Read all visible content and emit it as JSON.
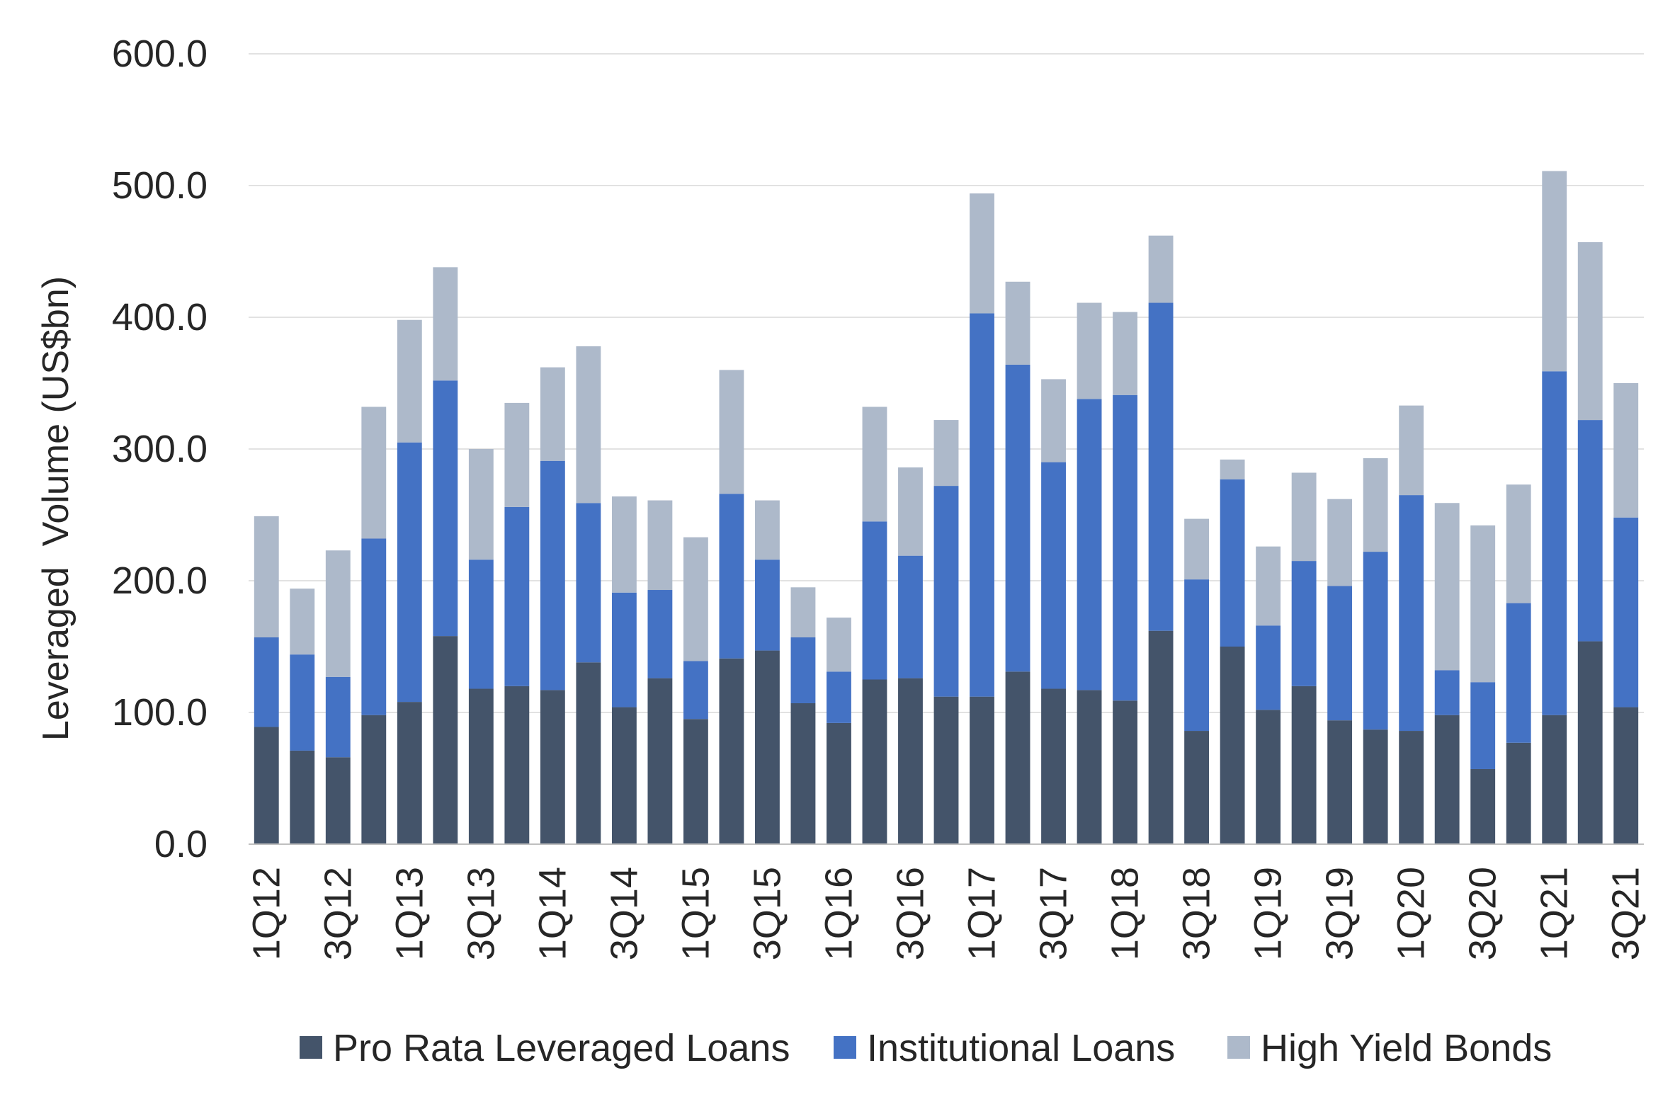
{
  "chart_data": {
    "type": "bar",
    "stacked": true,
    "categories": [
      "1Q12",
      "",
      "3Q12",
      "",
      "1Q13",
      "",
      "3Q13",
      "",
      "1Q14",
      "",
      "3Q14",
      "",
      "1Q15",
      "",
      "3Q15",
      "",
      "1Q16",
      "",
      "3Q16",
      "",
      "1Q17",
      "",
      "3Q17",
      "",
      "1Q18",
      "",
      "3Q18",
      "",
      "1Q19",
      "",
      "3Q19",
      "",
      "1Q20",
      "",
      "3Q20",
      "",
      "1Q21",
      "",
      "3Q21"
    ],
    "series": [
      {
        "name": "Pro Rata Leveraged Loans",
        "color": "#44546A",
        "values": [
          89,
          71,
          66,
          98,
          108,
          158,
          118,
          120,
          117,
          138,
          104,
          126,
          95,
          141,
          147,
          107,
          92,
          125,
          126,
          112,
          112,
          131,
          118,
          117,
          109,
          162,
          86,
          150,
          102,
          120,
          94,
          87,
          86,
          98,
          57,
          77,
          98,
          154,
          104
        ]
      },
      {
        "name": "Institutional Loans",
        "color": "#4472C4",
        "values": [
          68,
          73,
          61,
          134,
          197,
          194,
          98,
          136,
          174,
          121,
          87,
          67,
          44,
          125,
          69,
          50,
          39,
          120,
          93,
          160,
          291,
          233,
          172,
          221,
          232,
          249,
          115,
          127,
          64,
          95,
          102,
          135,
          179,
          34,
          66,
          106,
          261,
          168,
          144
        ]
      },
      {
        "name": "High Yield Bonds",
        "color": "#ADB9CA",
        "values": [
          92,
          50,
          96,
          100,
          93,
          86,
          84,
          79,
          71,
          119,
          73,
          68,
          94,
          94,
          45,
          38,
          41,
          87,
          67,
          50,
          91,
          63,
          63,
          73,
          63,
          51,
          46,
          15,
          60,
          67,
          66,
          71,
          68,
          127,
          119,
          90,
          152,
          135,
          102
        ]
      }
    ],
    "ylabel": "Leveraged  Volume (US$bn)",
    "ylim": [
      0,
      600
    ],
    "y_ticks": [
      "0.0",
      "100.0",
      "200.0",
      "300.0",
      "400.0",
      "500.0",
      "600.0"
    ],
    "grid": true,
    "legend_position": "bottom"
  }
}
